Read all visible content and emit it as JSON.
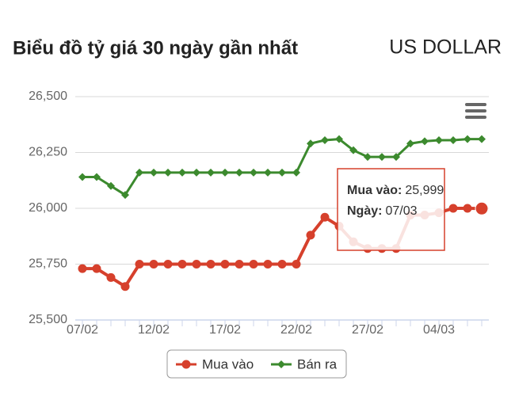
{
  "chart_data": {
    "type": "line",
    "title": "Biểu đồ tỷ giá 30 ngày gần nhất",
    "subtitle": "US DOLLAR",
    "categories": [
      "07/02",
      null,
      null,
      null,
      null,
      "12/02",
      null,
      null,
      null,
      null,
      "17/02",
      null,
      null,
      null,
      null,
      "22/02",
      null,
      null,
      null,
      null,
      "27/02",
      null,
      null,
      null,
      null,
      "04/03",
      null,
      null,
      null
    ],
    "series": [
      {
        "name": "Mua vào",
        "color": "#d6402c",
        "marker": "circle",
        "values": [
          25730,
          25730,
          25690,
          25650,
          25750,
          25750,
          25750,
          25750,
          25750,
          25750,
          25750,
          25750,
          25750,
          25750,
          25750,
          25750,
          25880,
          25960,
          25920,
          25850,
          25820,
          25820,
          25820,
          25970,
          25970,
          25980,
          26000,
          26000,
          25999
        ]
      },
      {
        "name": "Bán ra",
        "color": "#3c8a2e",
        "marker": "diamond",
        "values": [
          26140,
          26140,
          26100,
          26060,
          26160,
          26160,
          26160,
          26160,
          26160,
          26160,
          26160,
          26160,
          26160,
          26160,
          26160,
          26160,
          26290,
          26305,
          26310,
          26260,
          26230,
          26230,
          26230,
          26290,
          26300,
          26305,
          26305,
          26310,
          26310
        ]
      }
    ],
    "ylim": [
      25500,
      26500
    ],
    "yticks": [
      {
        "value": 25500,
        "label": "25,500"
      },
      {
        "value": 25750,
        "label": "25,750"
      },
      {
        "value": 26000,
        "label": "26,000"
      },
      {
        "value": 26250,
        "label": "26,250"
      },
      {
        "value": 26500,
        "label": "26,500"
      }
    ],
    "grid": true,
    "legend": "bottom",
    "tooltip": {
      "index": 28,
      "series": 0,
      "lines": [
        {
          "label": "Mua vào:",
          "value": "25,999"
        },
        {
          "label": "Ngày:",
          "value": "07/03"
        }
      ]
    }
  }
}
